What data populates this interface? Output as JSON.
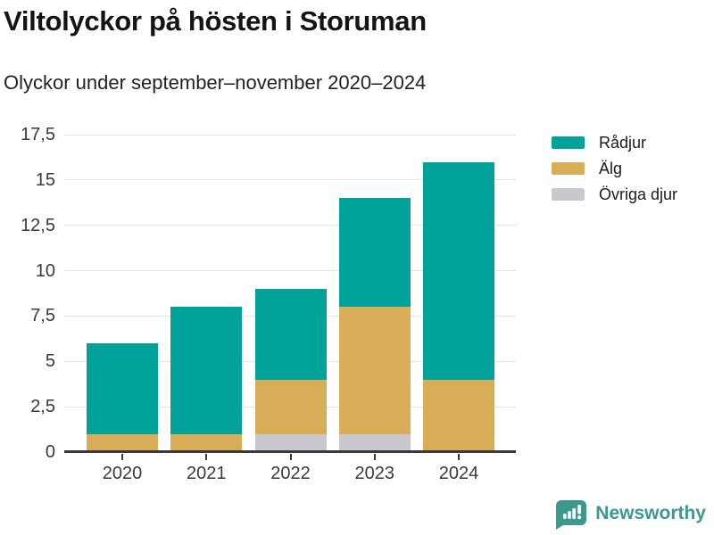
{
  "header": {
    "title": "Viltolyckor på hösten i Storuman",
    "subtitle": "Olyckor under september–november 2020–2024"
  },
  "chart_data": {
    "type": "bar",
    "stacked": true,
    "categories": [
      "2020",
      "2021",
      "2022",
      "2023",
      "2024"
    ],
    "series": [
      {
        "name": "Rådjur",
        "color": "#00a29a",
        "values": [
          5,
          7,
          5,
          6,
          12
        ]
      },
      {
        "name": "Älg",
        "color": "#d9ac57",
        "values": [
          1,
          1,
          3,
          7,
          4
        ]
      },
      {
        "name": "Övriga djur",
        "color": "#c9c8ce",
        "values": [
          0,
          0,
          1,
          1,
          0
        ]
      }
    ],
    "stack_order_bottom_to_top": [
      "Övriga djur",
      "Älg",
      "Rådjur"
    ],
    "totals": [
      6,
      8,
      9,
      14,
      16
    ],
    "title": "Viltolyckor på hösten i Storuman",
    "xlabel": "",
    "ylabel": "",
    "ylim": [
      0,
      17.5
    ],
    "ytick_step": 2.5,
    "yticks": [
      0,
      2.5,
      5,
      7.5,
      10,
      12.5,
      15,
      17.5
    ],
    "ytick_labels": [
      "0",
      "2,5",
      "5",
      "7,5",
      "10",
      "12,5",
      "15",
      "17,5"
    ],
    "grid": "horizontal",
    "grid_color": "#e4e4e4",
    "axis_color": "#3a3a3a",
    "legend_position": "right"
  },
  "legend": {
    "items": [
      {
        "label": "Rådjur",
        "color": "#00a29a"
      },
      {
        "label": "Älg",
        "color": "#d9ac57"
      },
      {
        "label": "Övriga djur",
        "color": "#c9c8ce"
      }
    ]
  },
  "footer": {
    "brand": "Newsworthy",
    "brand_color": "#3a9a8d",
    "logo_icon": "newsworthy-speech-bubble-chart-icon"
  }
}
